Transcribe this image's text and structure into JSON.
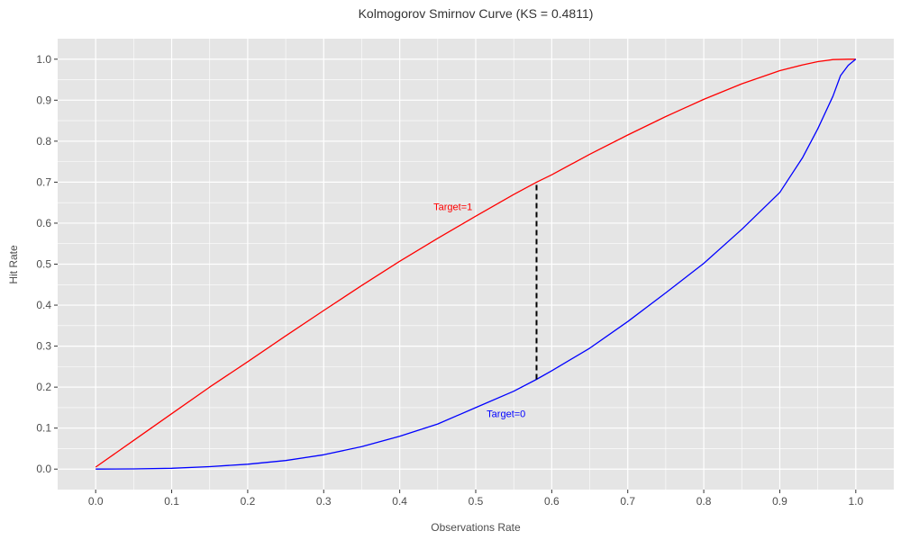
{
  "chart_data": {
    "type": "line",
    "title": "Kolmogorov Smirnov Curve (KS = 0.4811)",
    "xlabel": "Observations Rate",
    "ylabel": "Hit Rate",
    "xlim": [
      -0.05,
      1.05
    ],
    "ylim": [
      -0.05,
      1.05
    ],
    "x_ticks": [
      0.0,
      0.1,
      0.2,
      0.3,
      0.4,
      0.5,
      0.6,
      0.7,
      0.8,
      0.9,
      1.0
    ],
    "x_tick_labels": [
      "0.0",
      "0.1",
      "0.2",
      "0.3",
      "0.4",
      "0.5",
      "0.6",
      "0.7",
      "0.8",
      "0.9",
      "1.0"
    ],
    "y_ticks": [
      0.0,
      0.1,
      0.2,
      0.3,
      0.4,
      0.5,
      0.6,
      0.7,
      0.8,
      0.9,
      1.0
    ],
    "y_tick_labels": [
      "0.0",
      "0.1",
      "0.2",
      "0.3",
      "0.4",
      "0.5",
      "0.6",
      "0.7",
      "0.8",
      "0.9",
      "1.0"
    ],
    "grid": true,
    "colors": {
      "panel_bg": "#e5e5e5",
      "grid": "#ffffff",
      "target1": "#ff0000",
      "target0": "#0000ff",
      "ks_line": "#000000"
    },
    "series": [
      {
        "name": "Target=1",
        "color": "#ff0000",
        "x": [
          0.0,
          0.05,
          0.1,
          0.15,
          0.2,
          0.25,
          0.3,
          0.35,
          0.4,
          0.45,
          0.5,
          0.55,
          0.58,
          0.6,
          0.65,
          0.7,
          0.75,
          0.8,
          0.85,
          0.9,
          0.93,
          0.95,
          0.97,
          0.99,
          1.0
        ],
        "y": [
          0.005,
          0.07,
          0.135,
          0.2,
          0.262,
          0.325,
          0.387,
          0.448,
          0.507,
          0.563,
          0.617,
          0.67,
          0.7,
          0.718,
          0.768,
          0.815,
          0.86,
          0.902,
          0.94,
          0.972,
          0.986,
          0.994,
          0.999,
          1.0,
          1.0
        ]
      },
      {
        "name": "Target=0",
        "color": "#0000ff",
        "x": [
          0.0,
          0.05,
          0.1,
          0.15,
          0.2,
          0.25,
          0.3,
          0.35,
          0.4,
          0.45,
          0.5,
          0.55,
          0.58,
          0.6,
          0.65,
          0.7,
          0.75,
          0.8,
          0.85,
          0.9,
          0.93,
          0.95,
          0.97,
          0.98,
          0.99,
          1.0
        ],
        "y": [
          0.0,
          0.0005,
          0.002,
          0.006,
          0.012,
          0.021,
          0.035,
          0.055,
          0.08,
          0.11,
          0.15,
          0.19,
          0.219,
          0.24,
          0.295,
          0.36,
          0.43,
          0.502,
          0.585,
          0.675,
          0.76,
          0.83,
          0.91,
          0.96,
          0.985,
          1.0
        ]
      }
    ],
    "ks_line": {
      "x": 0.58,
      "y_from": 0.219,
      "y_to": 0.7
    },
    "annotations": [
      {
        "text": "Target=1",
        "x": 0.47,
        "y": 0.64,
        "color": "#ff0000"
      },
      {
        "text": "Target=0",
        "x": 0.54,
        "y": 0.135,
        "color": "#0000ff"
      }
    ]
  }
}
